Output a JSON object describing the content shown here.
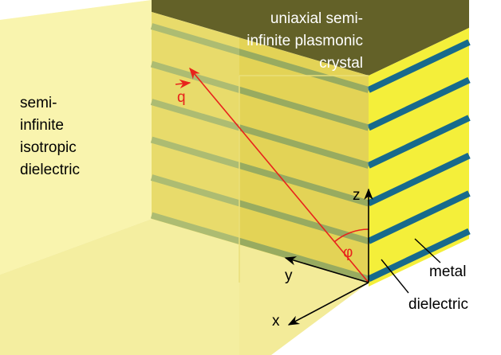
{
  "labels": {
    "crystal": [
      "uniaxial semi-",
      "infinite plasmonic",
      "crystal"
    ],
    "isotropic": [
      "semi-",
      "infinite",
      "isotropic",
      "dielectric"
    ],
    "q": "q",
    "z": "z",
    "y": "y",
    "x": "x",
    "phi": "φ",
    "metal": "metal",
    "dielectric": "dielectric"
  }
}
